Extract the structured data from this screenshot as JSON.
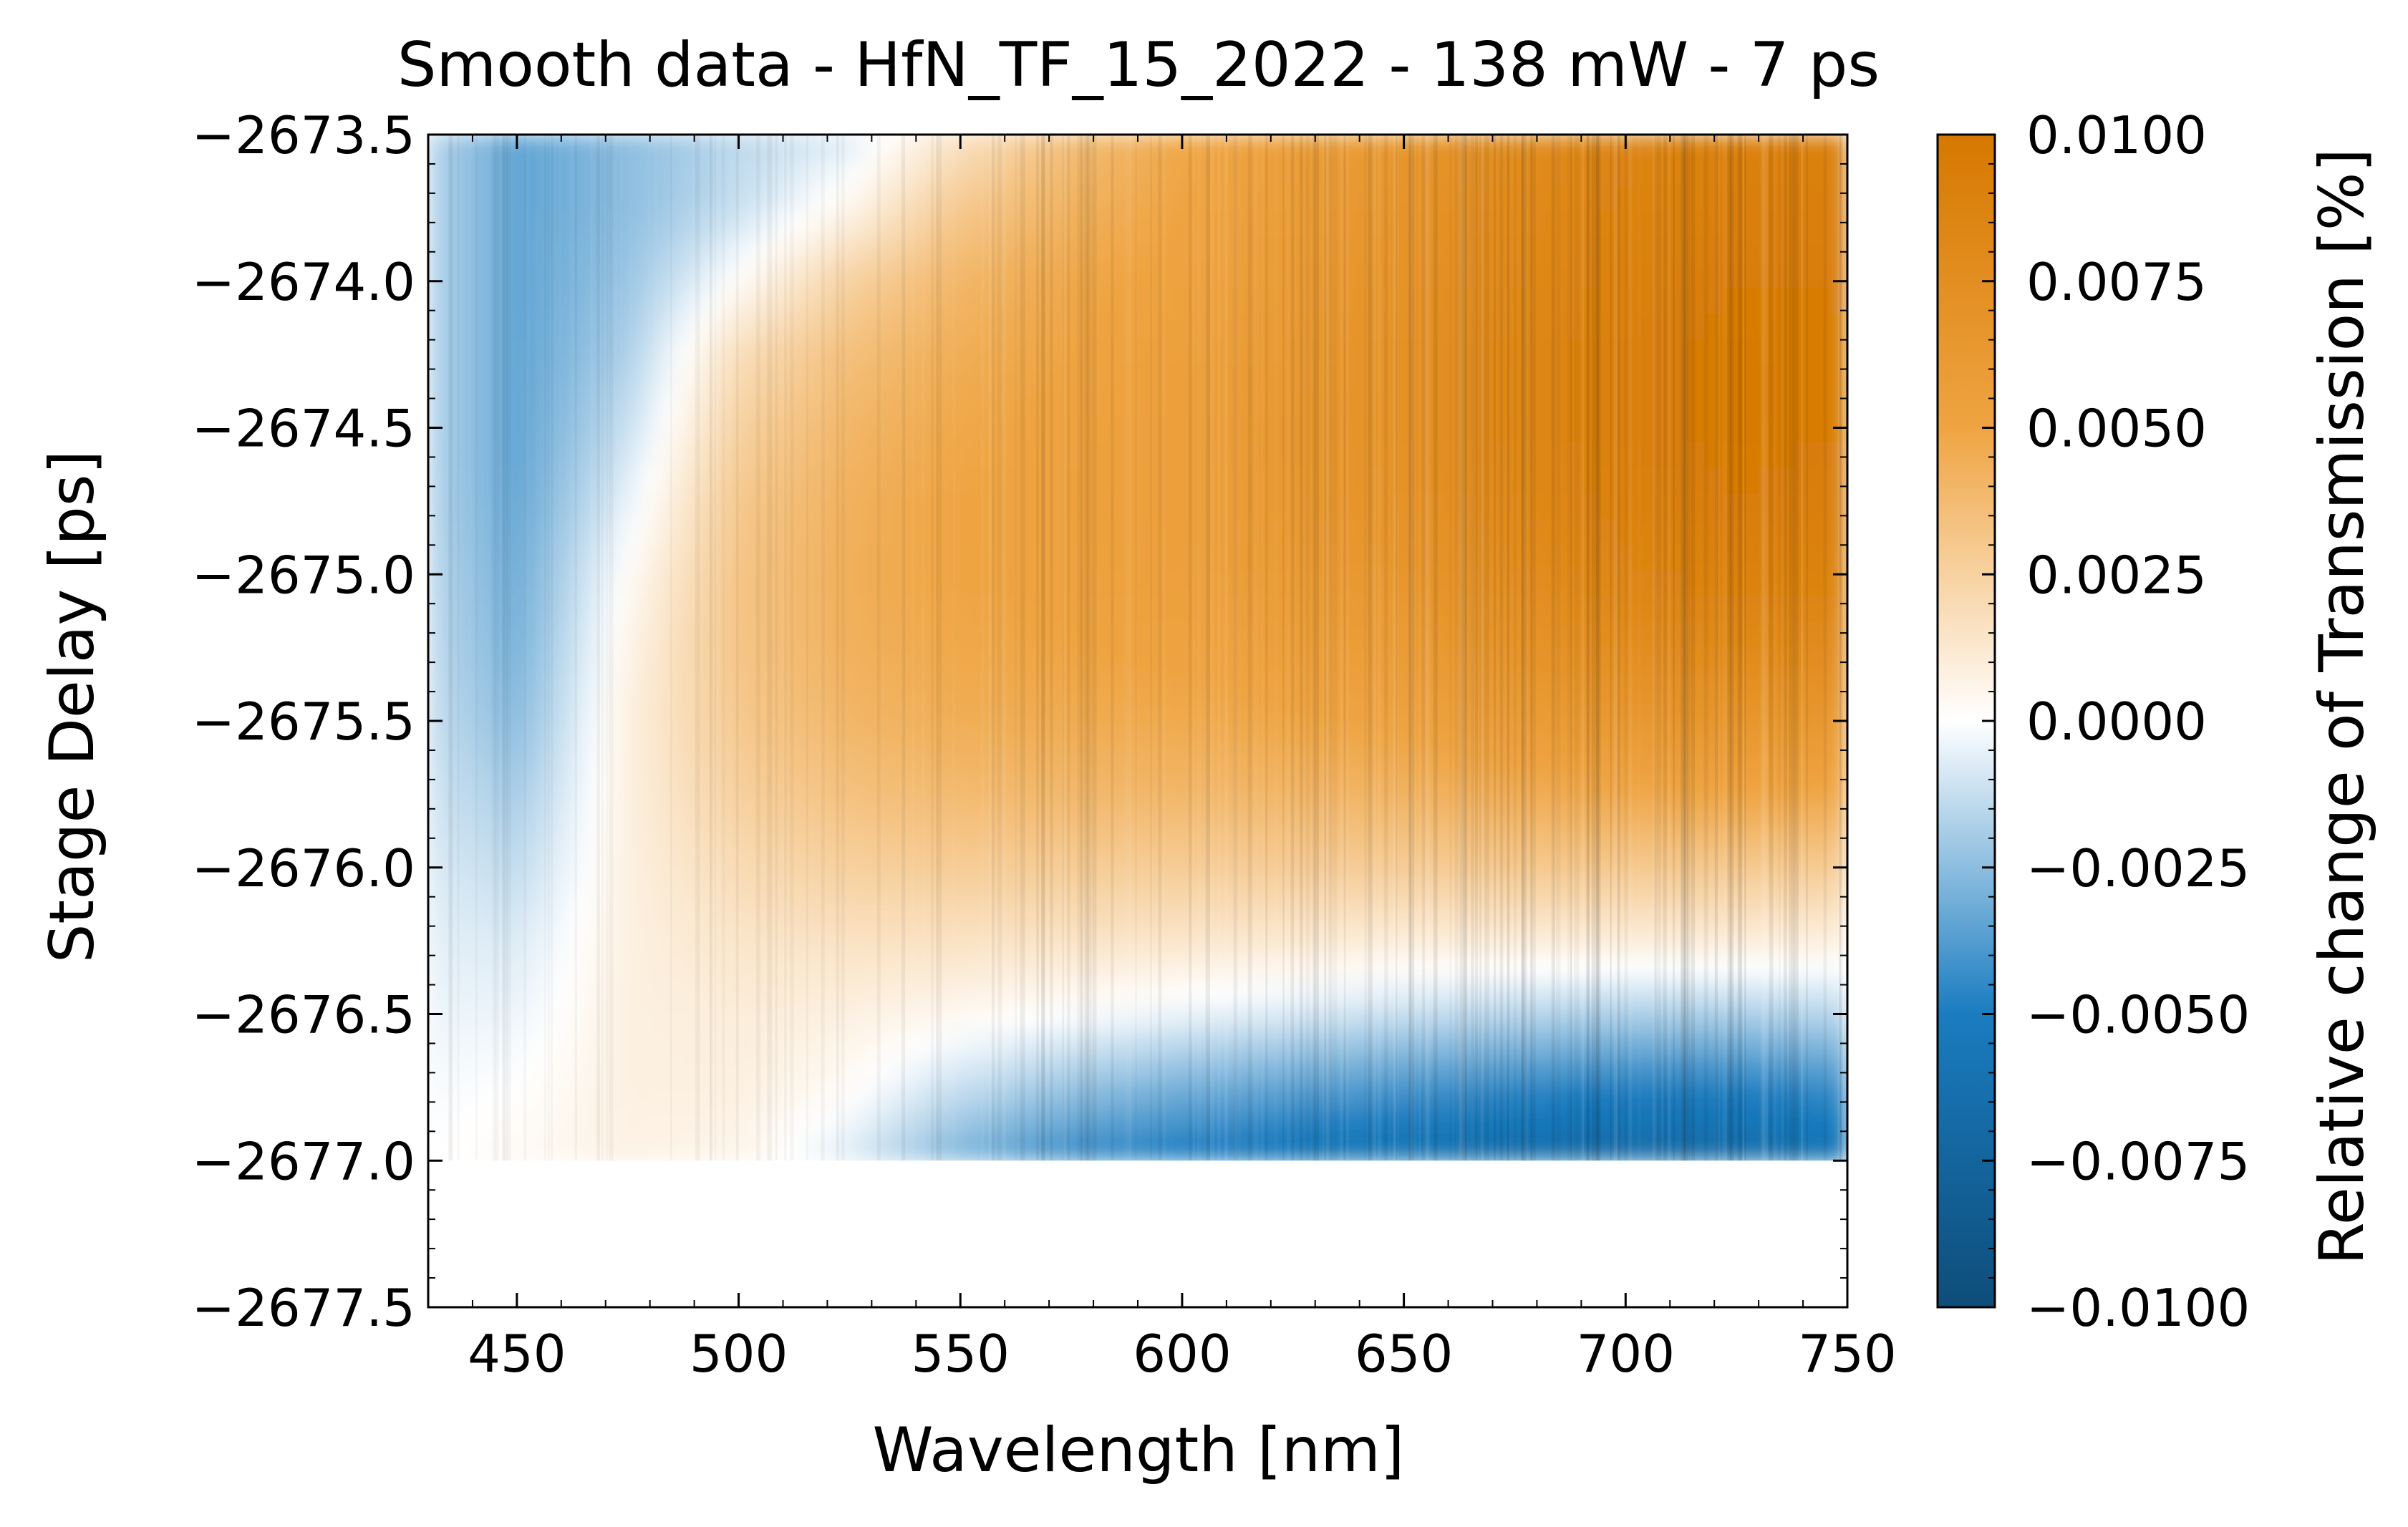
{
  "chart_data": {
    "type": "heatmap",
    "title": "Smooth data - HfN_TF_15_2022 - 138 mW - 7 ps",
    "xlabel": "Wavelength [nm]",
    "ylabel": "Stage Delay [ps]",
    "colorbar_label": "Relative change of Transmission [%]",
    "xlim": [
      430,
      750
    ],
    "ylim": [
      -2677.5,
      -2673.5
    ],
    "x_ticks": [
      450,
      500,
      550,
      600,
      650,
      700,
      750
    ],
    "x_tick_labels": [
      "450",
      "500",
      "550",
      "600",
      "650",
      "700",
      "750"
    ],
    "y_ticks": [
      -2673.5,
      -2674.0,
      -2674.5,
      -2675.0,
      -2675.5,
      -2676.0,
      -2676.5,
      -2677.0,
      -2677.5
    ],
    "y_tick_labels": [
      "−2673.5",
      "−2674.0",
      "−2674.5",
      "−2675.0",
      "−2675.5",
      "−2676.0",
      "−2676.5",
      "−2677.0",
      "−2677.5"
    ],
    "colorbar_range": [
      -0.01,
      0.01
    ],
    "colorbar_ticks": [
      0.01,
      0.0075,
      0.005,
      0.0025,
      0.0,
      -0.0025,
      -0.005,
      -0.0075,
      -0.01
    ],
    "colorbar_tick_labels": [
      "0.0100",
      "0.0075",
      "0.0050",
      "0.0025",
      "0.0000",
      "−0.0025",
      "−0.0050",
      "−0.0075",
      "−0.0100"
    ],
    "colormap": {
      "negative_end": "#0e4d7a",
      "negative_mid": "#1a7cc0",
      "zero": "#ffffff",
      "positive_mid": "#efa442",
      "positive_end": "#d67800"
    },
    "data_extent": {
      "x": [
        430,
        750
      ],
      "y": [
        -2677.0,
        -2673.5
      ]
    },
    "grid_x": [
      430,
      450,
      475,
      500,
      525,
      550,
      575,
      600,
      625,
      650,
      675,
      700,
      725,
      750
    ],
    "grid_y": [
      -2673.5,
      -2673.75,
      -2674.0,
      -2674.25,
      -2674.5,
      -2674.75,
      -2675.0,
      -2675.25,
      -2675.5,
      -2675.75,
      -2676.0,
      -2676.25,
      -2676.5,
      -2676.75,
      -2677.0
    ],
    "z": [
      [
        -0.0015,
        -0.0035,
        -0.0025,
        -0.0015,
        -0.0008,
        0.0015,
        0.0035,
        0.0048,
        0.0055,
        0.0065,
        0.0075,
        0.0085,
        0.009,
        0.009
      ],
      [
        -0.0015,
        -0.0035,
        -0.0025,
        -0.0012,
        0.0005,
        0.003,
        0.0042,
        0.005,
        0.0058,
        0.0068,
        0.0078,
        0.0088,
        0.0092,
        0.0092
      ],
      [
        -0.0015,
        -0.0035,
        -0.0022,
        0.0002,
        0.0025,
        0.004,
        0.0048,
        0.0052,
        0.006,
        0.007,
        0.008,
        0.009,
        0.0095,
        0.0095
      ],
      [
        -0.0015,
        -0.0035,
        -0.0018,
        0.0018,
        0.0035,
        0.0045,
        0.005,
        0.0055,
        0.0062,
        0.0072,
        0.0082,
        0.0092,
        0.0098,
        0.0095
      ],
      [
        -0.0015,
        -0.0035,
        -0.0012,
        0.0025,
        0.004,
        0.0048,
        0.0052,
        0.0056,
        0.0064,
        0.0072,
        0.0082,
        0.0092,
        0.0098,
        0.0095
      ],
      [
        -0.0015,
        -0.0034,
        -0.0005,
        0.003,
        0.0043,
        0.005,
        0.0053,
        0.0056,
        0.0063,
        0.007,
        0.008,
        0.009,
        0.0095,
        0.0092
      ],
      [
        -0.0014,
        -0.0032,
        0.0002,
        0.0032,
        0.0044,
        0.005,
        0.0052,
        0.0055,
        0.006,
        0.0066,
        0.0075,
        0.0085,
        0.009,
        0.0088
      ],
      [
        -0.0013,
        -0.003,
        0.0006,
        0.0032,
        0.0043,
        0.0048,
        0.005,
        0.0052,
        0.0055,
        0.006,
        0.0068,
        0.0076,
        0.008,
        0.0078
      ],
      [
        -0.0012,
        -0.0026,
        0.0008,
        0.003,
        0.004,
        0.0045,
        0.0046,
        0.0047,
        0.0049,
        0.0052,
        0.0058,
        0.0064,
        0.0066,
        0.0064
      ],
      [
        -0.001,
        -0.002,
        0.0008,
        0.0026,
        0.0034,
        0.0038,
        0.0039,
        0.004,
        0.004,
        0.0042,
        0.0045,
        0.0048,
        0.005,
        0.0048
      ],
      [
        -0.0008,
        -0.0014,
        0.0008,
        0.002,
        0.0026,
        0.0028,
        0.0028,
        0.0028,
        0.0028,
        0.0028,
        0.003,
        0.003,
        0.003,
        0.0028
      ],
      [
        -0.0006,
        -0.0008,
        0.0008,
        0.0014,
        0.0016,
        0.0016,
        0.0015,
        0.0014,
        0.0012,
        0.001,
        0.001,
        0.001,
        0.001,
        0.0008
      ],
      [
        -0.0004,
        -0.0004,
        0.0008,
        0.001,
        0.0008,
        0.0004,
        0.0,
        -0.0004,
        -0.0008,
        -0.0012,
        -0.0015,
        -0.0018,
        -0.0018,
        -0.0015
      ],
      [
        -0.0002,
        0.0,
        0.0008,
        0.0008,
        0.0002,
        -0.0012,
        -0.0022,
        -0.003,
        -0.0035,
        -0.004,
        -0.0044,
        -0.0048,
        -0.0048,
        -0.0042
      ],
      [
        0.0,
        0.0003,
        0.0007,
        0.0005,
        -0.0008,
        -0.003,
        -0.0045,
        -0.0052,
        -0.0058,
        -0.0062,
        -0.0066,
        -0.007,
        -0.0068,
        -0.006
      ]
    ]
  }
}
